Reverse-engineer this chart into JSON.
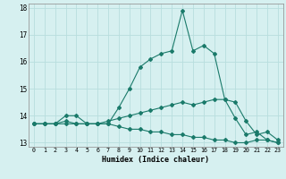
{
  "xlabel": "Humidex (Indice chaleur)",
  "background_color": "#d6f0f0",
  "line_color": "#1a7a6a",
  "grid_color": "#b8dede",
  "xlim": [
    -0.5,
    23.5
  ],
  "ylim": [
    12.85,
    18.15
  ],
  "yticks": [
    13,
    14,
    15,
    16,
    17,
    18
  ],
  "xticks": [
    0,
    1,
    2,
    3,
    4,
    5,
    6,
    7,
    8,
    9,
    10,
    11,
    12,
    13,
    14,
    15,
    16,
    17,
    18,
    19,
    20,
    21,
    22,
    23
  ],
  "series": [
    [
      13.7,
      13.7,
      13.7,
      14.0,
      14.0,
      13.7,
      13.7,
      13.7,
      14.3,
      15.0,
      15.8,
      16.1,
      16.3,
      16.4,
      17.9,
      16.4,
      16.6,
      16.3,
      14.6,
      13.9,
      13.3,
      13.4,
      13.1,
      13.0
    ],
    [
      13.7,
      13.7,
      13.7,
      13.8,
      13.7,
      13.7,
      13.7,
      13.8,
      13.9,
      14.0,
      14.1,
      14.2,
      14.3,
      14.4,
      14.5,
      14.4,
      14.5,
      14.6,
      14.6,
      14.5,
      13.8,
      13.3,
      13.4,
      13.1
    ],
    [
      13.7,
      13.7,
      13.7,
      13.7,
      13.7,
      13.7,
      13.7,
      13.7,
      13.6,
      13.5,
      13.5,
      13.4,
      13.4,
      13.3,
      13.3,
      13.2,
      13.2,
      13.1,
      13.1,
      13.0,
      13.0,
      13.1,
      13.1,
      13.0
    ]
  ]
}
